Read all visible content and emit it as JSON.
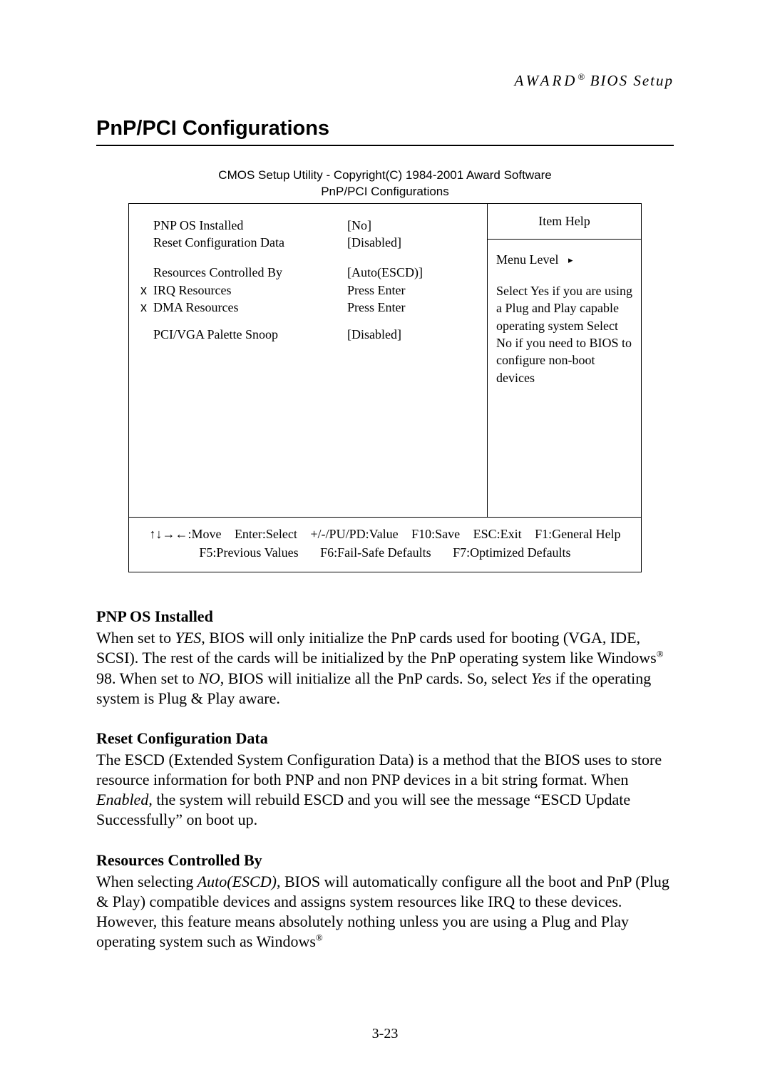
{
  "header": {
    "brand": "AWARD",
    "reg": "®",
    "tail": "  BIOS Setup"
  },
  "title": "PnP/PCI Configurations",
  "bios": {
    "caption_line1": "CMOS Setup Utility - Copyright(C) 1984-2001 Award Software",
    "caption_line2": "PnP/PCI Configurations",
    "rows": [
      {
        "x": "",
        "label": "PNP OS Installed",
        "value": "[No]"
      },
      {
        "x": "",
        "label": "Reset Configuration Data",
        "value": "[Disabled]"
      },
      {
        "spacer": true
      },
      {
        "x": "",
        "label": "Resources Controlled By",
        "value": "[Auto(ESCD)]"
      },
      {
        "x": "x",
        "label": "IRQ Resources",
        "value": "Press Enter"
      },
      {
        "x": "x",
        "label": "DMA Resources",
        "value": "Press Enter"
      },
      {
        "spacer_sm": true
      },
      {
        "x": "",
        "label": "PCI/VGA Palette Snoop",
        "value": "[Disabled]"
      }
    ],
    "help": {
      "head": "Item Help",
      "menu_level_label": "Menu Level",
      "arrow": "▸",
      "body": "Select Yes if you are using a Plug and Play capable operating system Select No if you need to BIOS to configure non-boot devices"
    },
    "footer": {
      "move": "↑↓→←:Move",
      "enter": "Enter:Select",
      "value": "+/-/PU/PD:Value",
      "save": "F10:Save",
      "esc": "ESC:Exit",
      "f1": "F1:General Help",
      "f5": "F5:Previous Values",
      "f6": "F6:Fail-Safe Defaults",
      "f7": "F7:Optimized Defaults"
    }
  },
  "sections": {
    "s1_head": "PNP OS Installed",
    "s1_p_a": "When set to ",
    "s1_yes": "YES",
    "s1_p_b": ", BIOS will only initialize the PnP cards used for booting (VGA, IDE, SCSI).  The rest of the cards will be initialized by the PnP operating system like Windows",
    "s1_reg": "®",
    "s1_p_c": " 98.  When set to ",
    "s1_no": "NO",
    "s1_p_d": ", BIOS will initialize all the PnP cards.  So, select ",
    "s1_yes2": "Yes",
    "s1_p_e": " if the operating system is Plug & Play aware.",
    "s2_head": "Reset Configuration Data",
    "s2_p_a": "The ESCD (Extended System Configuration Data) is a method that the BIOS uses to store resource information for both PNP and non PNP devices in a bit string format.  When ",
    "s2_en": "Enabled",
    "s2_p_b": ", the system will rebuild ESCD and you will see the message “ESCD Update Successfully” on boot up.",
    "s3_head": "Resources Controlled By",
    "s3_p_a": "When selecting ",
    "s3_auto": "Auto(ESCD)",
    "s3_p_b": ", BIOS will automatically configure all the boot and PnP (Plug & Play) compatible devices and assigns system resources like IRQ to these devices.  However, this feature means absolutely nothing unless you are using a Plug and Play operating system such as Windows",
    "s3_reg": "®"
  },
  "page_number": "3-23"
}
